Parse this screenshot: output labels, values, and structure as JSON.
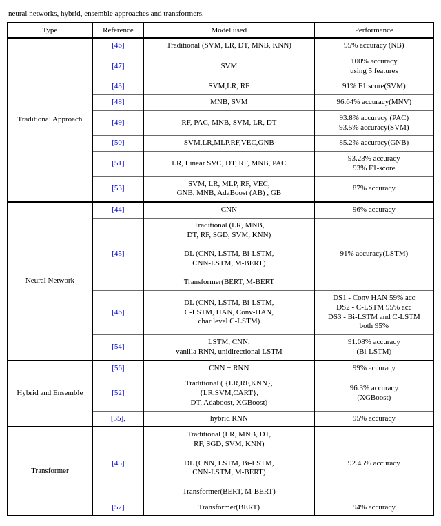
{
  "intro_fragment": "neural networks, hybrid, ensemble approaches and transformers.",
  "headers": {
    "type": "Type",
    "reference": "Reference",
    "model": "Model used",
    "performance": "Performance"
  },
  "colors": {
    "link": "#0000cc",
    "rule_heavy": "#000000",
    "rule_light": "#6b6b6b",
    "background": "#ffffff",
    "text": "#000000"
  },
  "fontsize_pt": 11,
  "font_family": "Times New Roman",
  "column_widths_pct": [
    20,
    12,
    40,
    28
  ],
  "sections": [
    {
      "type": "Traditional Approach",
      "rows": [
        {
          "ref": "[46]",
          "model": "Traditional (SVM, LR, DT, MNB, KNN)",
          "perf": "95% accuracy (NB)"
        },
        {
          "ref": "[47]",
          "model": "SVM",
          "perf": "100% accuracy\nusing 5 features"
        },
        {
          "ref": "[43]",
          "model": "SVM,LR, RF",
          "perf": "91% F1 score(SVM)"
        },
        {
          "ref": "[48]",
          "model": "MNB, SVM",
          "perf": "96.64% accuracy(MNV)"
        },
        {
          "ref": "[49]",
          "model": "RF, PAC, MNB, SVM, LR, DT",
          "perf": "93.8% accuracy (PAC)\n93.5% accuracy(SVM)"
        },
        {
          "ref": "[50]",
          "model": "SVM,LR,MLP,RF,VEC,GNB",
          "perf": "85.2% accuracy(GNB)"
        },
        {
          "ref": "[51]",
          "model": "LR, Linear SVC, DT, RF, MNB, PAC",
          "perf": "93.23% accuracy\n93% F1-score"
        },
        {
          "ref": "[53]",
          "model": "SVM, LR, MLP, RF, VEC,\nGNB, MNB, AdaBoost (AB) , GB",
          "perf": "87% accuracy"
        }
      ]
    },
    {
      "type": "Neural Network",
      "rows": [
        {
          "ref": "[44]",
          "model": "CNN",
          "perf": "96% accuracy"
        },
        {
          "ref": "[45]",
          "model": "Traditional (LR, MNB,\nDT, RF, SGD, SVM, KNN)\n\nDL (CNN, LSTM, Bi-LSTM,\nCNN-LSTM, M-BERT)\n\nTransformer(BERT, M-BERT",
          "perf": "91% accuracy(LSTM)"
        },
        {
          "ref": "[46]",
          "model": "DL (CNN, LSTM, Bi-LSTM,\nC-LSTM, HAN, Conv-HAN,\nchar level C-LSTM)",
          "perf": "DS1 - Conv HAN 59% acc\nDS2 - C-LSTM 95% acc\nDS3 - Bi-LSTM and C-LSTM\nboth 95%"
        },
        {
          "ref": "[54]",
          "model": "LSTM, CNN,\nvanilla RNN, unidirectional LSTM",
          "perf": "91.08% accuracy\n(Bi-LSTM)"
        }
      ]
    },
    {
      "type": "Hybrid and Ensemble",
      "rows": [
        {
          "ref": "[56]",
          "model": "CNN + RNN",
          "perf": "99% accuracy"
        },
        {
          "ref": "[52]",
          "model": "Traditional ( {LR,RF,KNN},\n{LR,SVM,CART},\nDT, Adaboost, XGBoost)",
          "perf": "96.3% accuracy\n(XGBoost)"
        },
        {
          "ref": "[55],",
          "model": "hybrid RNN",
          "perf": "95% accuracy"
        }
      ]
    },
    {
      "type": "Transformer",
      "rows": [
        {
          "ref": "[45]",
          "model": "Traditional (LR, MNB, DT,\nRF, SGD, SVM, KNN)\n\nDL (CNN, LSTM, Bi-LSTM,\nCNN-LSTM, M-BERT)\n\nTransformer(BERT, M-BERT)",
          "perf": "92.45% accuracy"
        },
        {
          "ref": "[57]",
          "model": "Transformer(BERT)",
          "perf": "94% accuracy"
        }
      ]
    }
  ]
}
